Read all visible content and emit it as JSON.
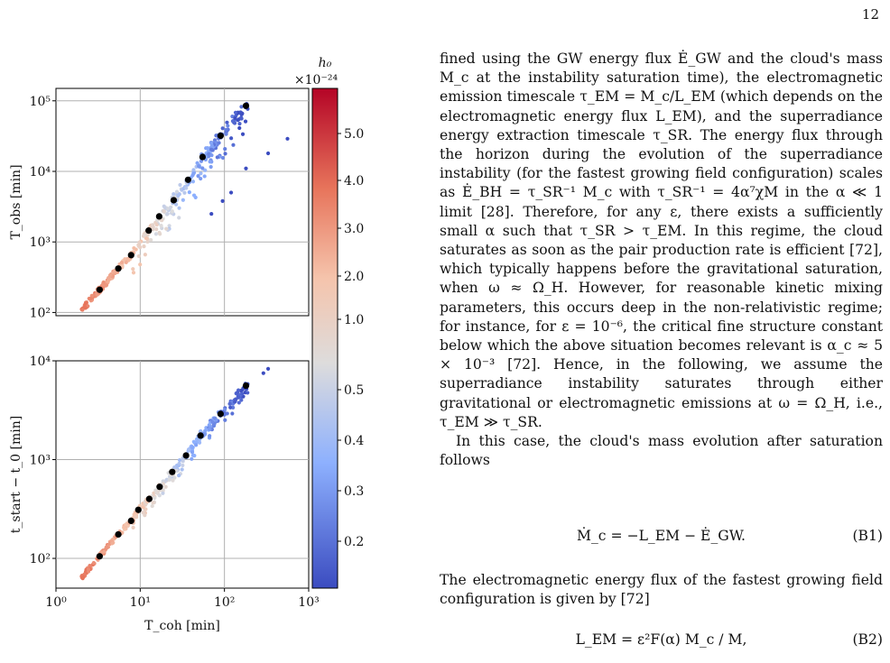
{
  "page_number": "12",
  "figure": {
    "colorbar_label": "h₀",
    "colorbar_multiplier": "×10⁻²⁴",
    "colorbar_ticks": [
      "5.0",
      "4.0",
      "3.0",
      "2.0",
      "1.0",
      "0.5",
      "0.4",
      "0.3",
      "0.2"
    ],
    "top_ylabel": "T_obs [min]",
    "bottom_ylabel": "t_start − t_0 [min]",
    "xlabel": "T_coh [min]"
  },
  "chart_data": [
    {
      "type": "scatter",
      "ylabel": "T_obs [min]",
      "xscale": "log",
      "yscale": "log",
      "xlim": [
        1,
        1000
      ],
      "ylim": [
        90,
        150000
      ],
      "yticks": [
        "10²",
        "10³",
        "10⁴",
        "10⁵"
      ],
      "grid": true,
      "binned_means": {
        "x": [
          3.3,
          5.5,
          7.8,
          12.6,
          16.8,
          25,
          37,
          55,
          90,
          180
        ],
        "y": [
          210,
          420,
          650,
          1450,
          2300,
          3900,
          7600,
          16000,
          32000,
          85000
        ]
      },
      "scatter_color_scale": "h₀ (coolwarm)"
    },
    {
      "type": "scatter",
      "ylabel": "t_start − t_0 [min]",
      "xlabel": "T_coh [min]",
      "xscale": "log",
      "yscale": "log",
      "xlim": [
        1,
        1000
      ],
      "ylim": [
        50,
        10000
      ],
      "xticks": [
        "10⁰",
        "10¹",
        "10²",
        "10³"
      ],
      "yticks": [
        "10²",
        "10³",
        "10⁴"
      ],
      "grid": true,
      "binned_means": {
        "x": [
          3.3,
          5.5,
          7.8,
          9.5,
          12.8,
          17,
          24,
          35,
          52,
          90,
          180
        ],
        "y": [
          105,
          175,
          240,
          310,
          400,
          530,
          750,
          1100,
          1750,
          2900,
          5600
        ]
      },
      "scatter_color_scale": "h₀ (coolwarm)"
    }
  ],
  "text": {
    "p1": "fined using the GW energy flux Ė_GW and the cloud's mass M_c at the instability saturation time), the electromagnetic emission timescale τ_EM = M_c/L_EM (which depends on the electromagnetic energy flux L_EM), and the superradiance energy extraction timescale τ_SR. The energy flux through the horizon during the evolution of the superradiance instability (for the fastest growing field configuration) scales as Ė_BH = τ_SR⁻¹ M_c with τ_SR⁻¹ = 4α⁷χM in the α ≪ 1 limit [28]. Therefore, for any ε, there exists a sufficiently small α such that τ_SR > τ_EM. In this regime, the cloud saturates as soon as the pair production rate is efficient [72], which typically happens before the gravitational saturation, when ω ≈ Ω_H. However, for reasonable kinetic mixing parameters, this occurs deep in the non-relativistic regime; for instance, for ε = 10⁻⁶, the critical fine structure constant below which the above situation becomes relevant is α_c ≈ 5 × 10⁻³ [72]. Hence, in the following, we assume the superradiance instability saturates through either gravitational or electromagnetic emissions at ω = Ω_H, i.e., τ_EM ≫ τ_SR.",
    "p2": "In this case, the cloud's mass evolution after saturation follows",
    "eq1": "Ṁ_c = −L_EM − Ė_GW.",
    "eq1_num": "(B1)",
    "p3": "The electromagnetic energy flux of the fastest growing field configuration is given by [72]",
    "eq2": "L_EM = ε²F(α) M_c / M,",
    "eq2_num": "(B2)"
  }
}
